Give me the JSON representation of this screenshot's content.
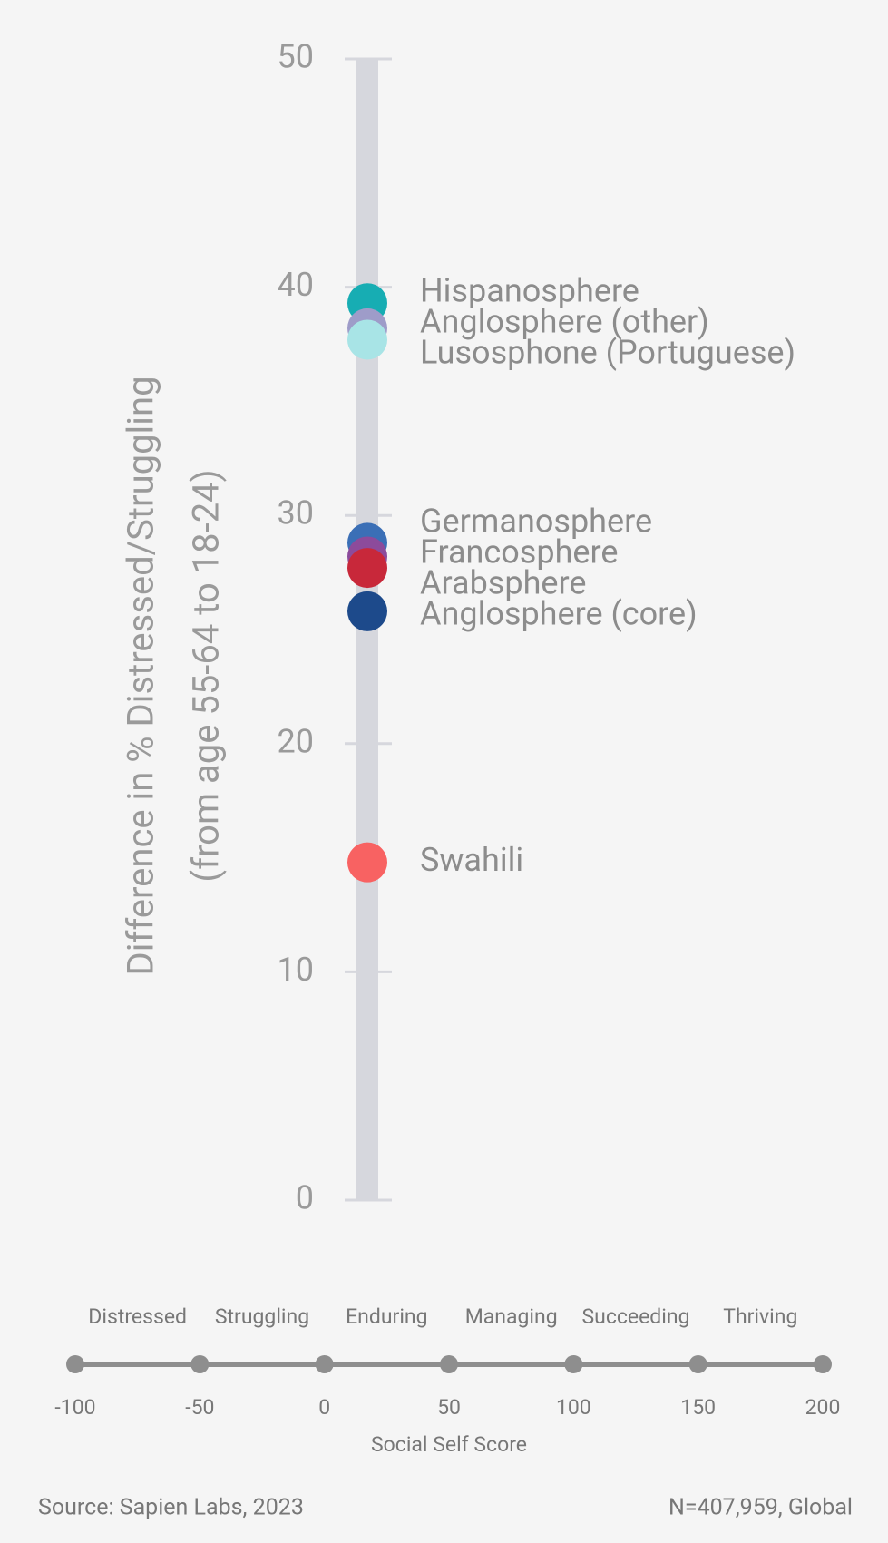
{
  "chart_data": {
    "type": "strip",
    "ylabel": "Difference in % Distressed/Struggling",
    "ylabel_sub": "(from age 55-64 to 18-24)",
    "ylim": [
      0,
      50
    ],
    "yticks": [
      0,
      10,
      20,
      30,
      40,
      50
    ],
    "categories": [
      "Hispanosphere",
      "Anglosphere (other)",
      "Lusosphone (Portuguese)",
      "Germanosphere",
      "Francosphere",
      "Arabsphere",
      "Anglosphere (core)",
      "Swahili"
    ],
    "values": [
      39.3,
      38.2,
      37.7,
      28.8,
      28.2,
      27.7,
      25.8,
      14.8
    ],
    "colors": [
      "#17adb3",
      "#9e9cc9",
      "#a8e4e6",
      "#3b6fb6",
      "#8c4b9b",
      "#c8283a",
      "#1d4a8b",
      "#f86262"
    ],
    "scale": {
      "title": "Social Self Score",
      "categories": [
        "Distressed",
        "Struggling",
        "Enduring",
        "Managing",
        "Succeeding",
        "Thriving"
      ],
      "ticks": [
        -100,
        -50,
        0,
        50,
        100,
        150,
        200
      ]
    },
    "source": "Source: Sapien Labs, 2023",
    "note": "N=407,959, Global"
  }
}
